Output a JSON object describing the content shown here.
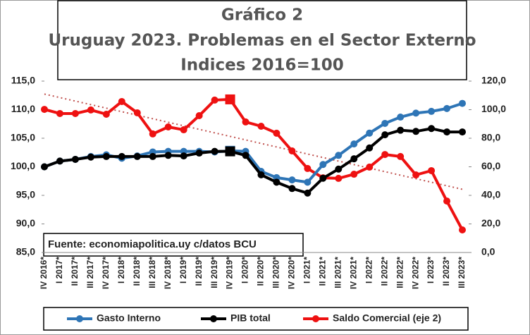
{
  "chart_data": {
    "type": "line",
    "title": [
      "Gráfico 2",
      "Uruguay 2023. Problemas en el Sector Externo",
      "Indices 2016=100"
    ],
    "annotation": "Fuente: economiapolitica.uy c/datos BCU",
    "categories": [
      "IV 2016*",
      "I 2017*",
      "II 2017*",
      "III 2017*",
      "IV 2017*",
      "I 2018*",
      "II 2018*",
      "III 2018*",
      "IV 2018*",
      "I 2019*",
      "II 2019*",
      "III 2019*",
      "IV 2019*",
      "I 2020*",
      "II 2020*",
      "III 2020*",
      "IV 2020*",
      "I 2021*",
      "II 2021*",
      "III 2021*",
      "IV 2021*",
      "I 2022*",
      "II 2022*",
      "III 2022*",
      "IV 2022*",
      "I 2023*",
      "II 2023*",
      "III 2023*"
    ],
    "series": [
      {
        "name": "Gasto Interno",
        "color": "#2e75b6",
        "values": [
          100.0,
          101.0,
          101.3,
          101.8,
          102.1,
          101.5,
          101.9,
          102.6,
          102.7,
          102.7,
          102.7,
          102.6,
          102.8,
          102.7,
          99.2,
          98.1,
          97.7,
          97.3,
          100.4,
          102.0,
          104.0,
          105.9,
          107.6,
          108.7,
          109.4,
          109.7,
          110.2,
          111.1
        ]
      },
      {
        "name": "PIB total",
        "color": "#000000",
        "values": [
          100.0,
          101.0,
          101.3,
          101.7,
          101.8,
          101.8,
          101.8,
          101.8,
          102.0,
          101.9,
          102.4,
          102.7,
          102.7,
          102.0,
          98.6,
          97.3,
          96.2,
          95.4,
          98.0,
          99.6,
          101.4,
          103.3,
          105.6,
          106.4,
          106.2,
          106.7,
          106.1,
          106.1
        ]
      },
      {
        "name": "Saldo Comercial (eje 2)",
        "color": "#ee1111",
        "axis": "y2",
        "trendline": true,
        "values": [
          100.2,
          97.3,
          97.3,
          99.8,
          96.8,
          105.7,
          97.8,
          83.0,
          87.9,
          85.9,
          95.8,
          106.7,
          107.2,
          91.4,
          88.4,
          83.5,
          71.1,
          58.8,
          52.3,
          51.9,
          54.8,
          59.8,
          68.6,
          67.2,
          54.3,
          57.3,
          36.0,
          15.8
        ]
      }
    ],
    "highlight_index": 12,
    "ylim": [
      85,
      115
    ],
    "yticks": [
      {
        "value": 85,
        "label": "85,0"
      },
      {
        "value": 90,
        "label": "90,0"
      },
      {
        "value": 95,
        "label": "95,0"
      },
      {
        "value": 100,
        "label": "100,0"
      },
      {
        "value": 105,
        "label": "105,0"
      },
      {
        "value": 110,
        "label": "110,0"
      },
      {
        "value": 115,
        "label": "115,0"
      }
    ],
    "y2lim": [
      0,
      120
    ],
    "y2ticks": [
      {
        "value": 0,
        "label": "0,0"
      },
      {
        "value": 20,
        "label": "20,0"
      },
      {
        "value": 40,
        "label": "40,0"
      },
      {
        "value": 60,
        "label": "60,0"
      },
      {
        "value": 80,
        "label": "80,0"
      },
      {
        "value": 100,
        "label": "100,0"
      },
      {
        "value": 120,
        "label": "120,0"
      }
    ],
    "trend_color": "#c0504d",
    "legend": "bottom"
  }
}
